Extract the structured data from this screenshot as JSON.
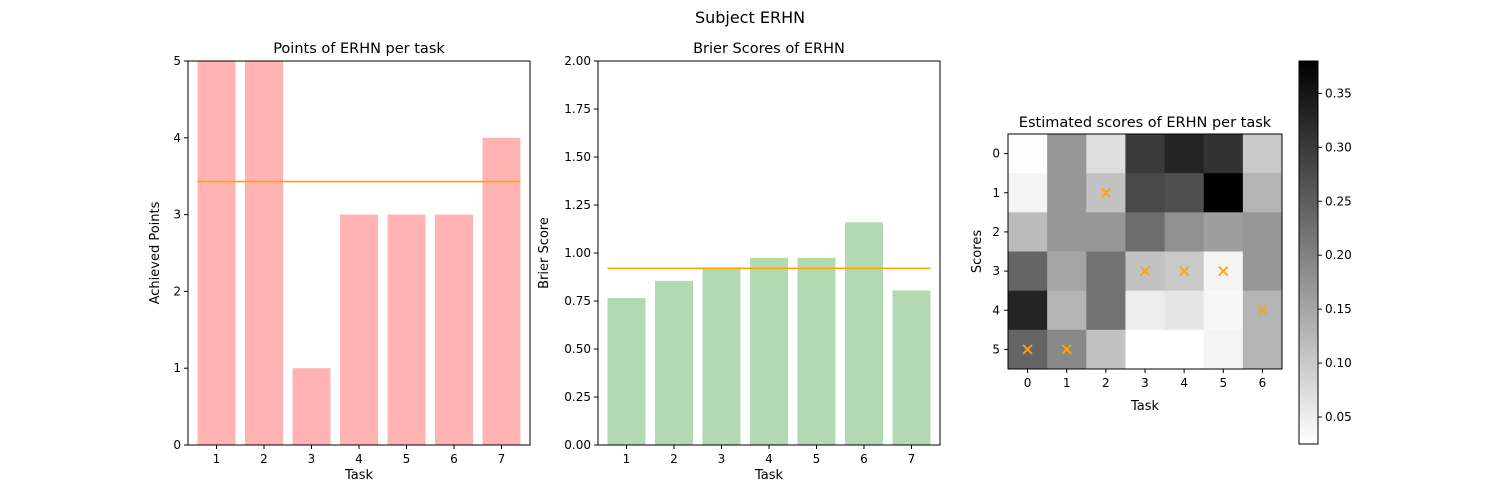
{
  "figure": {
    "suptitle": "Subject ERHN"
  },
  "chart_data": [
    {
      "type": "bar",
      "title": "Points of ERHN per task",
      "xlabel": "Task",
      "ylabel": "Achieved Points",
      "categories": [
        "1",
        "2",
        "3",
        "4",
        "5",
        "6",
        "7"
      ],
      "values": [
        5,
        5,
        1,
        3,
        3,
        3,
        4
      ],
      "mean_line": 3.43,
      "ylim": [
        0,
        5
      ],
      "yticks": [
        "0",
        "1",
        "2",
        "3",
        "4",
        "5"
      ],
      "bar_color": "#ffb3b3",
      "line_color": "#ffa500"
    },
    {
      "type": "bar",
      "title": "Brier Scores of ERHN",
      "xlabel": "Task",
      "ylabel": "Brier Score",
      "categories": [
        "1",
        "2",
        "3",
        "4",
        "5",
        "6",
        "7"
      ],
      "values": [
        0.765,
        0.855,
        0.925,
        0.975,
        0.975,
        1.16,
        0.805
      ],
      "mean_line": 0.92,
      "ylim": [
        0,
        2
      ],
      "yticks": [
        "0.00",
        "0.25",
        "0.50",
        "0.75",
        "1.00",
        "1.25",
        "1.50",
        "1.75",
        "2.00"
      ],
      "bar_color": "#b3d9b3",
      "line_color": "#ffa500"
    },
    {
      "type": "heatmap",
      "title": "Estimated scores of ERHN per task",
      "xlabel": "Task",
      "ylabel": "Scores",
      "xticks": [
        "0",
        "1",
        "2",
        "3",
        "4",
        "5",
        "6"
      ],
      "yticks": [
        "0",
        "1",
        "2",
        "3",
        "4",
        "5"
      ],
      "values": [
        [
          0.027,
          0.17,
          0.07,
          0.3,
          0.33,
          0.31,
          0.1
        ],
        [
          0.04,
          0.17,
          0.11,
          0.28,
          0.27,
          0.38,
          0.13
        ],
        [
          0.12,
          0.17,
          0.17,
          0.23,
          0.18,
          0.16,
          0.17
        ],
        [
          0.24,
          0.15,
          0.22,
          0.11,
          0.1,
          0.04,
          0.17
        ],
        [
          0.33,
          0.13,
          0.22,
          0.05,
          0.06,
          0.035,
          0.13
        ],
        [
          0.24,
          0.19,
          0.11,
          0.025,
          0.025,
          0.04,
          0.13
        ]
      ],
      "markers": [
        {
          "task": 0,
          "score": 5
        },
        {
          "task": 1,
          "score": 5
        },
        {
          "task": 2,
          "score": 1
        },
        {
          "task": 3,
          "score": 3
        },
        {
          "task": 4,
          "score": 3
        },
        {
          "task": 5,
          "score": 3
        },
        {
          "task": 6,
          "score": 4
        }
      ],
      "marker_color": "#ffa500",
      "colorbar": {
        "range": [
          0.025,
          0.38
        ],
        "ticks": [
          "0.05",
          "0.10",
          "0.15",
          "0.20",
          "0.25",
          "0.30",
          "0.35"
        ],
        "colormap": "gray_r"
      }
    }
  ]
}
